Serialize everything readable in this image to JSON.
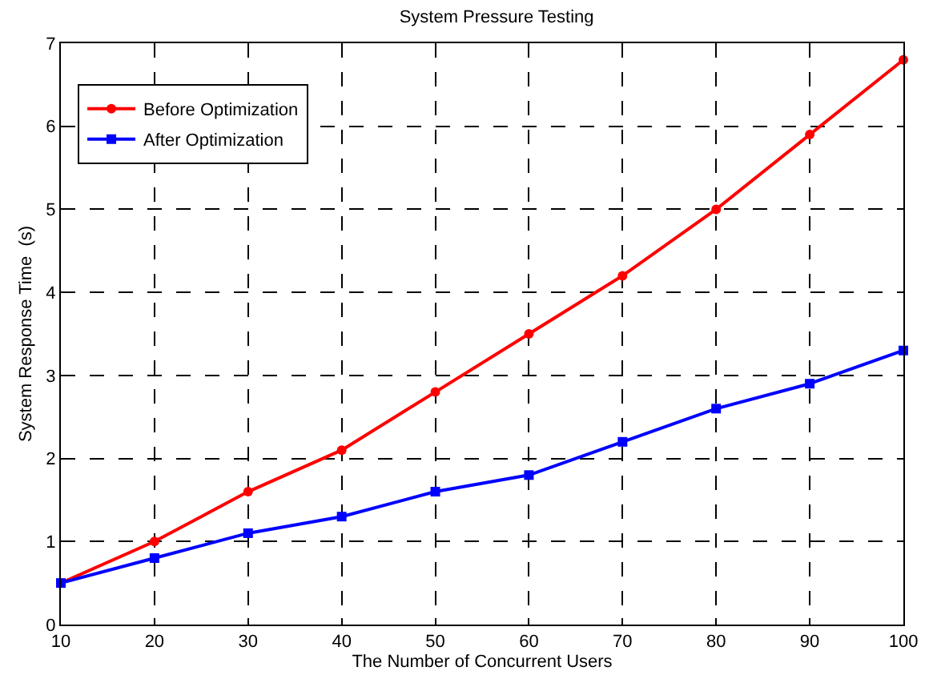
{
  "chart_data": {
    "type": "line",
    "title": "System Pressure Testing",
    "xlabel": "The Number of Concurrent Users",
    "ylabel": "System Response Time  (s)",
    "x": [
      10,
      20,
      30,
      40,
      50,
      60,
      70,
      80,
      90,
      100
    ],
    "series": [
      {
        "name": "Before Optimization",
        "color": "#ff0000",
        "marker": "circle",
        "values": [
          0.5,
          1.0,
          1.6,
          2.1,
          2.8,
          3.5,
          4.2,
          5.0,
          5.9,
          6.8
        ]
      },
      {
        "name": "After Optimization",
        "color": "#0000ff",
        "marker": "square",
        "values": [
          0.5,
          0.8,
          1.1,
          1.3,
          1.6,
          1.8,
          2.2,
          2.6,
          2.9,
          3.3
        ]
      }
    ],
    "xlim": [
      10,
      100
    ],
    "xticks": [
      10,
      20,
      30,
      40,
      50,
      60,
      70,
      80,
      90,
      100
    ],
    "ylim": [
      0,
      7
    ],
    "yticks": [
      0,
      1,
      2,
      3,
      4,
      5,
      6,
      7
    ],
    "grid": true,
    "legend": "top left",
    "line_style": "solid"
  }
}
